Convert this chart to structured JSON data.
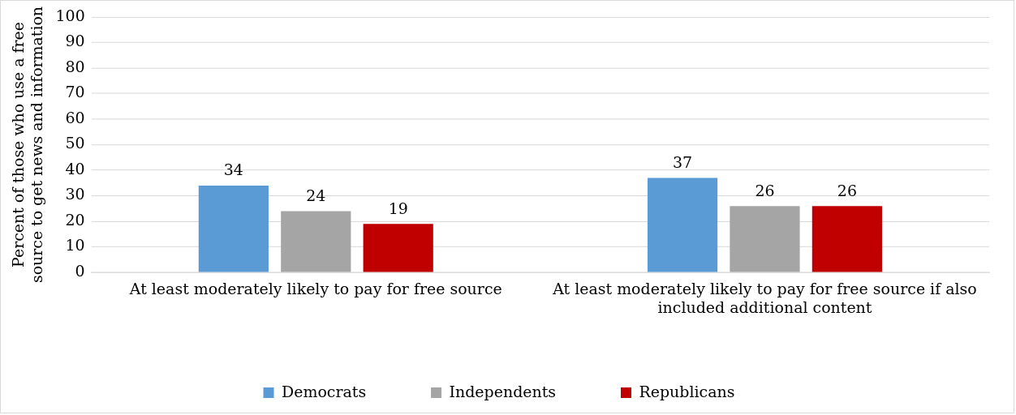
{
  "chart_data": {
    "type": "bar",
    "ylabel": "Percent of those who use a free source to get news and information",
    "categories": [
      "At least moderately likely to pay for free source",
      "At least moderately likely to pay for free source if also included additional content"
    ],
    "series": [
      {
        "name": "Democrats",
        "color": "#5b9bd5",
        "values": [
          34,
          37
        ]
      },
      {
        "name": "Independents",
        "color": "#a5a5a5",
        "values": [
          24,
          26
        ]
      },
      {
        "name": "Republicans",
        "color": "#c00000",
        "values": [
          19,
          26
        ]
      }
    ],
    "ylim": [
      0,
      100
    ],
    "yticks": [
      0,
      10,
      20,
      30,
      40,
      50,
      60,
      70,
      80,
      90,
      100
    ],
    "grid": "y",
    "legend": "bottom",
    "data_labels": true
  }
}
